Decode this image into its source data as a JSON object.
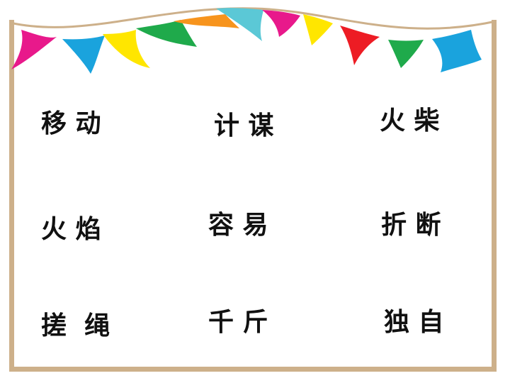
{
  "words": [
    {
      "text": "移 动"
    },
    {
      "text": "计 谋"
    },
    {
      "text": "火 柴"
    },
    {
      "text": "火 焰"
    },
    {
      "text": "容 易"
    },
    {
      "text": "折 断"
    },
    {
      "text": "搓  绳"
    },
    {
      "text": "千 斤"
    },
    {
      "text": "独 自"
    }
  ],
  "colors": {
    "frame": "#cdb08a",
    "flags": [
      "#e8198b",
      "#1aa3dd",
      "#ffe600",
      "#1faa4b",
      "#f7941d",
      "#5bc8d6",
      "#e8198b",
      "#ffe600",
      "#ed1c24",
      "#1faa4b",
      "#1aa3dd"
    ]
  }
}
